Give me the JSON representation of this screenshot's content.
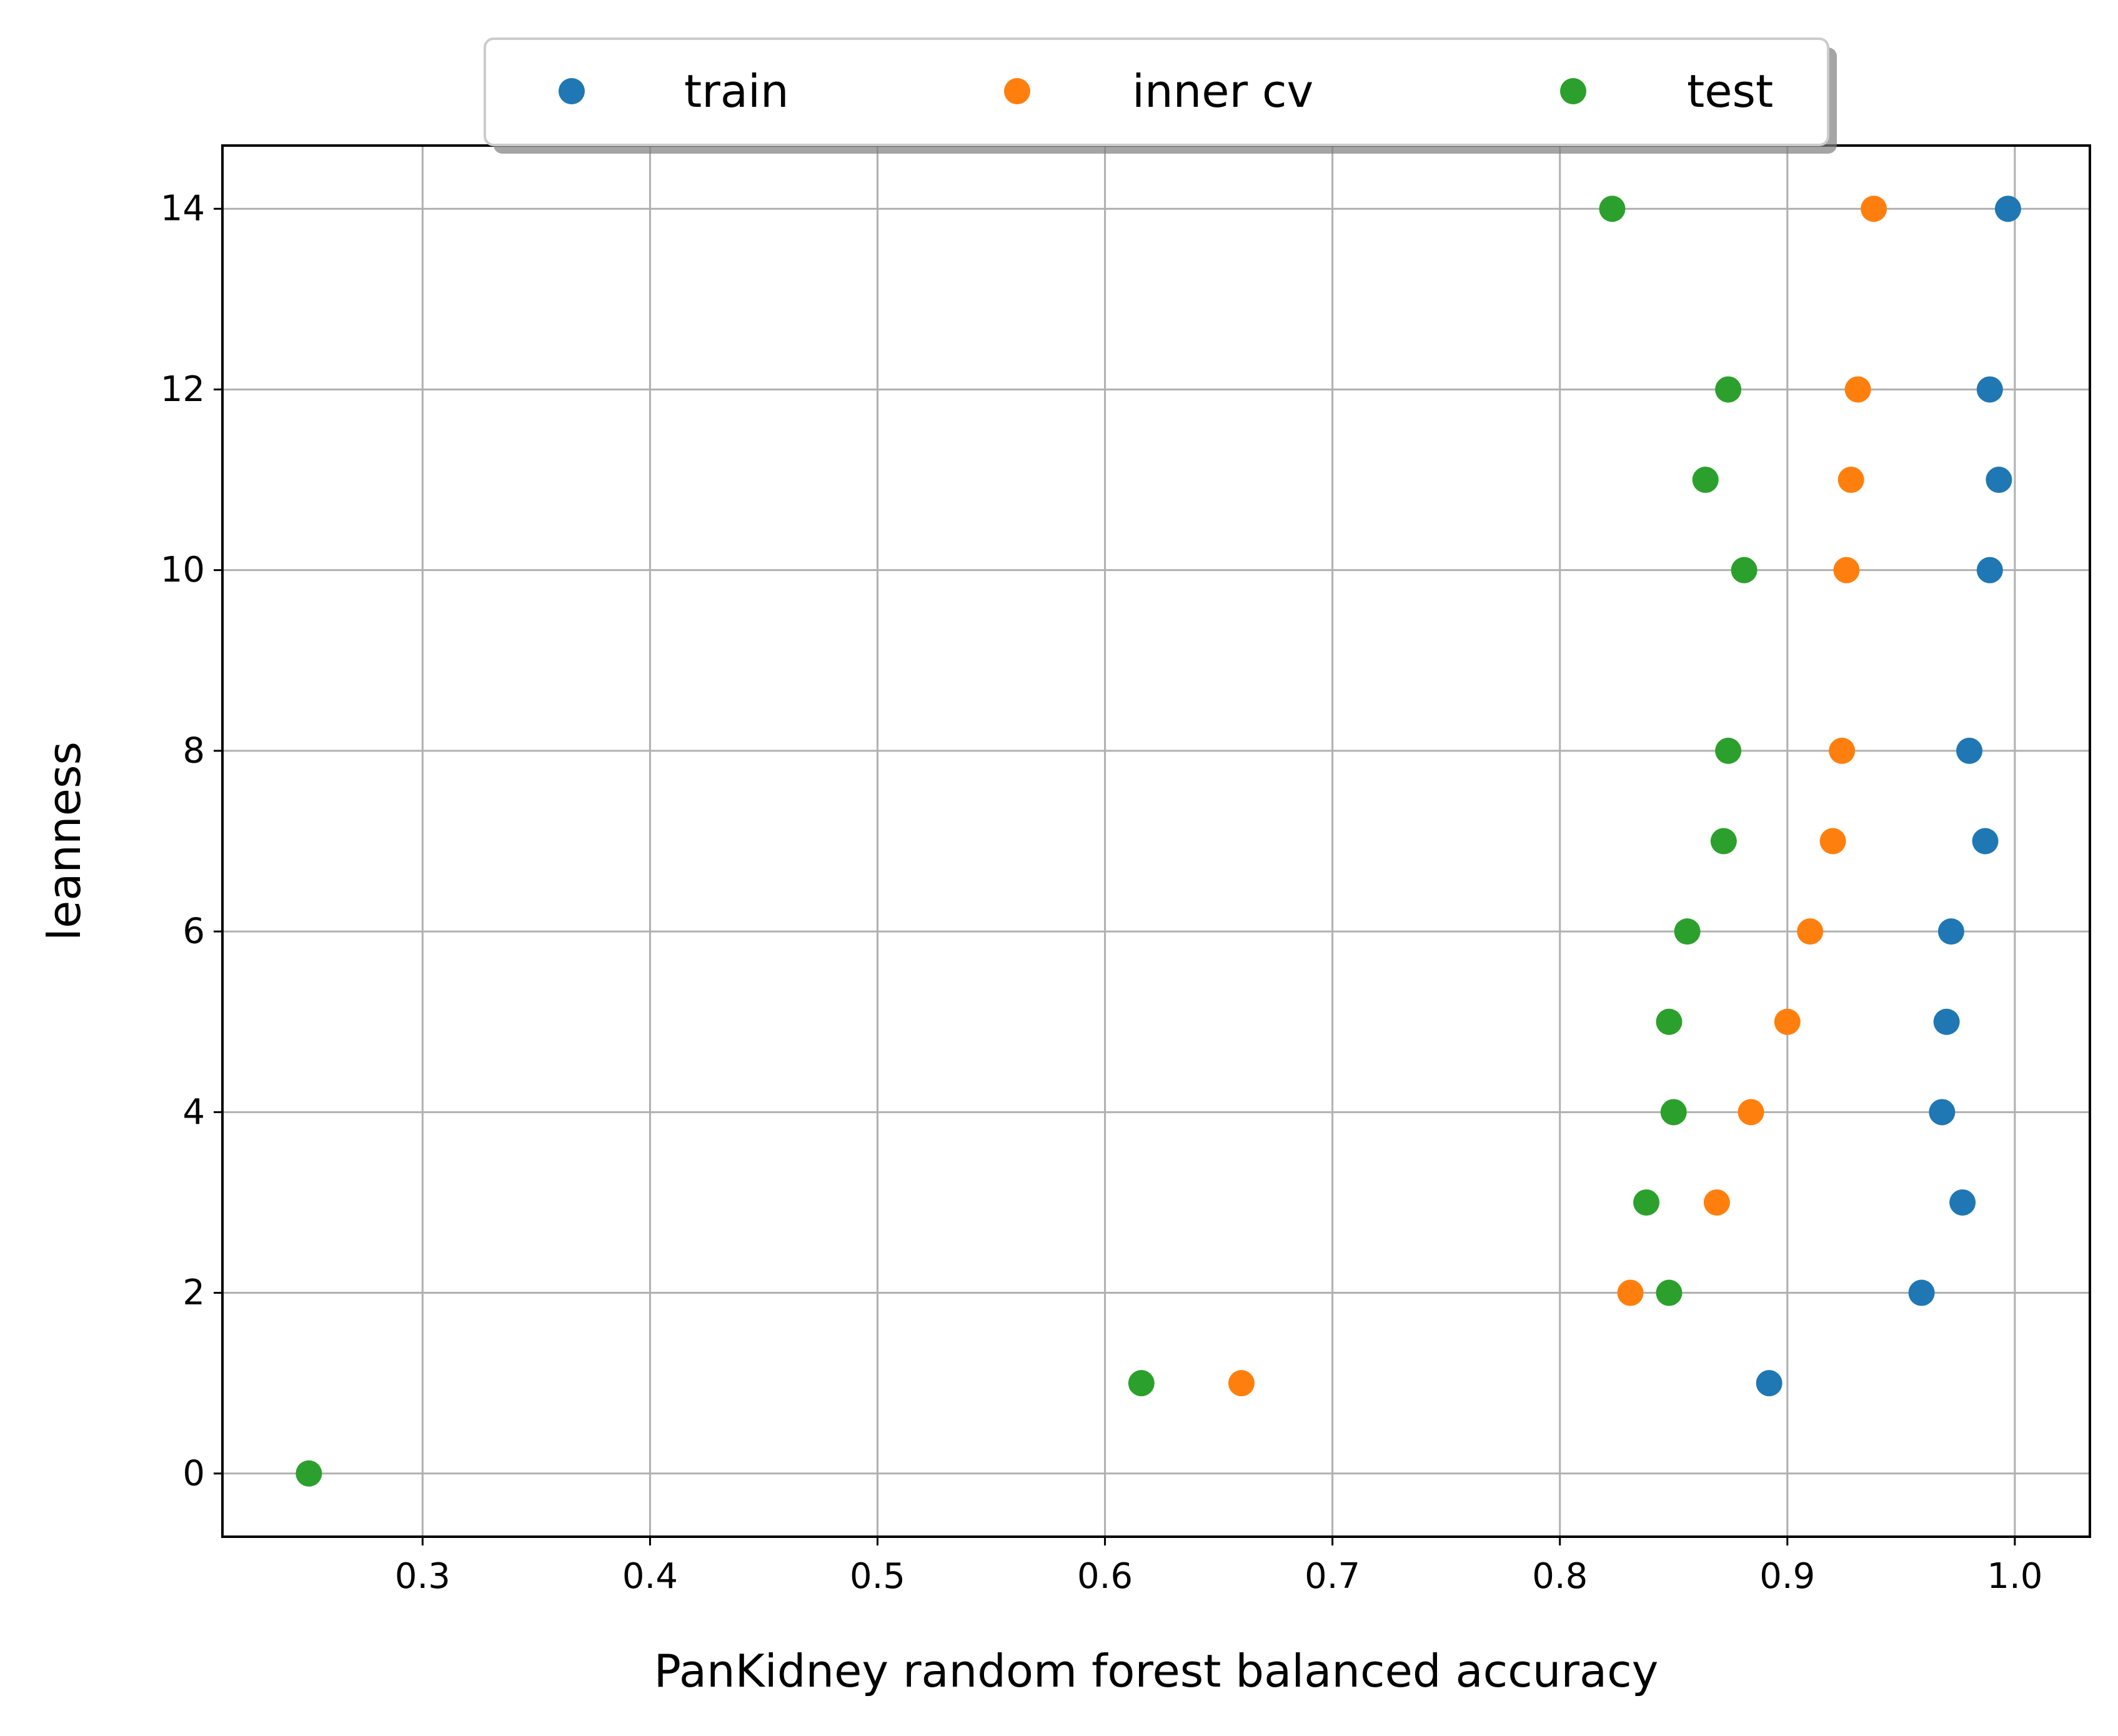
{
  "chart_data": {
    "type": "scatter",
    "title": "",
    "xlabel": "PanKidney random forest balanced accuracy",
    "ylabel": "leanness",
    "xlim": [
      0.212,
      1.033
    ],
    "ylim": [
      -0.7,
      14.7
    ],
    "xticks": [
      0.3,
      0.4,
      0.5,
      0.6,
      0.7,
      0.8,
      0.9,
      1.0
    ],
    "xtick_labels": [
      "0.3",
      "0.4",
      "0.5",
      "0.6",
      "0.7",
      "0.8",
      "0.9",
      "1.0"
    ],
    "yticks": [
      0,
      2,
      4,
      6,
      8,
      10,
      12,
      14
    ],
    "ytick_labels": [
      "0",
      "2",
      "4",
      "6",
      "8",
      "10",
      "12",
      "14"
    ],
    "grid": true,
    "legend_position": "top-center",
    "series": [
      {
        "name": "train",
        "color": "#1f77b4",
        "points": [
          {
            "x": 0.892,
            "y": 1
          },
          {
            "x": 0.959,
            "y": 2
          },
          {
            "x": 0.977,
            "y": 3
          },
          {
            "x": 0.968,
            "y": 4
          },
          {
            "x": 0.97,
            "y": 5
          },
          {
            "x": 0.972,
            "y": 6
          },
          {
            "x": 0.987,
            "y": 7
          },
          {
            "x": 0.98,
            "y": 8
          },
          {
            "x": 0.989,
            "y": 10
          },
          {
            "x": 0.993,
            "y": 11
          },
          {
            "x": 0.989,
            "y": 12
          },
          {
            "x": 0.997,
            "y": 14
          }
        ]
      },
      {
        "name": "inner cv",
        "color": "#ff7f0e",
        "points": [
          {
            "x": 0.66,
            "y": 1
          },
          {
            "x": 0.831,
            "y": 2
          },
          {
            "x": 0.869,
            "y": 3
          },
          {
            "x": 0.884,
            "y": 4
          },
          {
            "x": 0.9,
            "y": 5
          },
          {
            "x": 0.91,
            "y": 6
          },
          {
            "x": 0.92,
            "y": 7
          },
          {
            "x": 0.924,
            "y": 8
          },
          {
            "x": 0.926,
            "y": 10
          },
          {
            "x": 0.928,
            "y": 11
          },
          {
            "x": 0.931,
            "y": 12
          },
          {
            "x": 0.938,
            "y": 14
          }
        ]
      },
      {
        "name": "test",
        "color": "#2ca02c",
        "points": [
          {
            "x": 0.25,
            "y": 0
          },
          {
            "x": 0.616,
            "y": 1
          },
          {
            "x": 0.848,
            "y": 2
          },
          {
            "x": 0.838,
            "y": 3
          },
          {
            "x": 0.85,
            "y": 4
          },
          {
            "x": 0.848,
            "y": 5
          },
          {
            "x": 0.856,
            "y": 6
          },
          {
            "x": 0.872,
            "y": 7
          },
          {
            "x": 0.874,
            "y": 8
          },
          {
            "x": 0.881,
            "y": 10
          },
          {
            "x": 0.864,
            "y": 11
          },
          {
            "x": 0.874,
            "y": 12
          },
          {
            "x": 0.823,
            "y": 14
          }
        ]
      }
    ]
  }
}
